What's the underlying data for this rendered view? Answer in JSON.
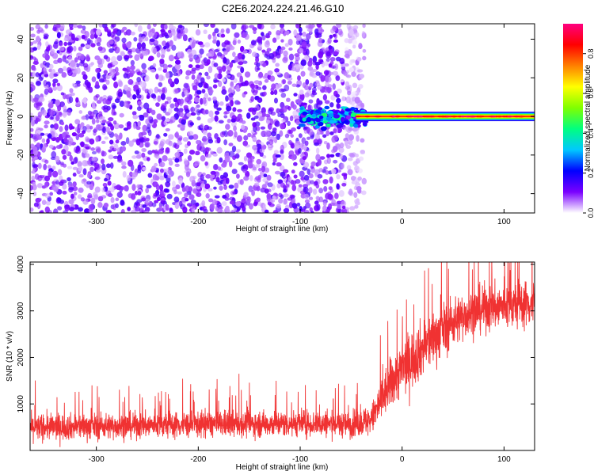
{
  "figure": {
    "title": "C2E6.2024.224.21.46.G10"
  },
  "chart_data": [
    {
      "type": "heatmap",
      "title": "C2E6.2024.224.21.46.G10",
      "xlabel": "Height of straight line (km)",
      "ylabel": "Frequency (Hz)",
      "xlim": [
        -365,
        130
      ],
      "ylim": [
        -50,
        48
      ],
      "xticks": [
        -300,
        -200,
        -100,
        0,
        100
      ],
      "yticks": [
        -40,
        -20,
        0,
        20,
        40
      ],
      "colorbar": {
        "label": "Normalized spectral amplitude",
        "range": [
          0,
          0.95
        ],
        "ticks": [
          0,
          0.2,
          0.4,
          0.6,
          0.8
        ],
        "tick_labels": [
          "0.0",
          "0.2",
          "0.4",
          "0.6",
          "0.8"
        ],
        "colormap": [
          "#ffffff",
          "#7a00ff",
          "#0000ff",
          "#00c8ff",
          "#00ff80",
          "#80ff00",
          "#ffff00",
          "#ff8000",
          "#ff0000",
          "#ff0080"
        ]
      },
      "regions": [
        {
          "x_range": [
            -365,
            -45
          ],
          "pattern": "broadband noise",
          "amplitude": 0.1
        },
        {
          "x_range": [
            -100,
            -45
          ],
          "pattern": "signal emerging near 0 Hz",
          "amplitude": 0.3
        },
        {
          "x_range": [
            -45,
            130
          ],
          "pattern": "narrow band at 0 Hz",
          "frequency": 0,
          "amplitude": 0.75
        }
      ],
      "grid": false
    },
    {
      "type": "line",
      "xlabel": "Height of straight line (km)",
      "ylabel": "SNR (10 * v/v)",
      "xlim": [
        -365,
        130
      ],
      "ylim": [
        0,
        4050
      ],
      "xticks": [
        -300,
        -200,
        -100,
        0,
        100
      ],
      "yticks": [
        1000,
        2000,
        3000,
        4000
      ],
      "series": [
        {
          "color": "#f03232",
          "x": [
            -365,
            -300,
            -200,
            -100,
            -50,
            -30,
            -20,
            -10,
            0,
            20,
            40,
            60,
            80,
            100,
            120,
            130
          ],
          "y": [
            500,
            520,
            560,
            580,
            560,
            650,
            1100,
            1500,
            1750,
            2200,
            2600,
            2900,
            3050,
            3100,
            3150,
            3150
          ],
          "spread": [
            250,
            250,
            250,
            250,
            250,
            300,
            450,
            500,
            550,
            550,
            500,
            450,
            450,
            450,
            450,
            450
          ]
        }
      ],
      "grid": false
    }
  ]
}
